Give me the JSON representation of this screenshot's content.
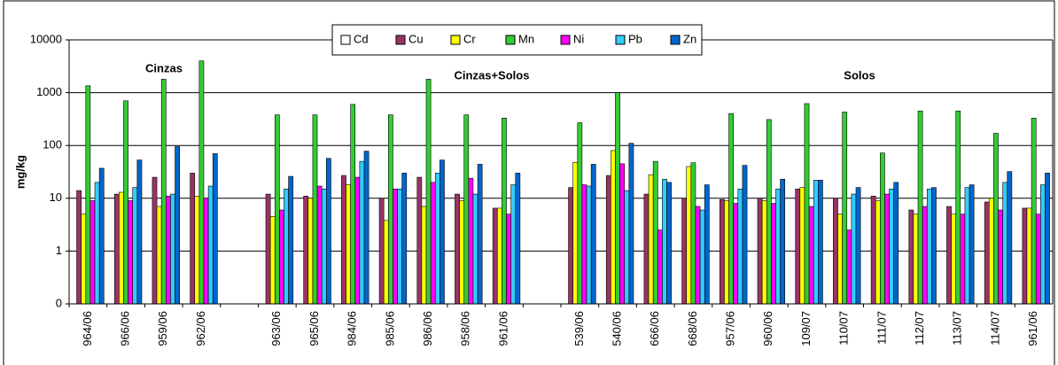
{
  "chart_data": {
    "type": "bar",
    "y_label": "mg/kg",
    "annotations": [
      "Cinzas",
      "Cinzas+Solos",
      "Solos"
    ],
    "categories": [
      "964/06",
      "966/06",
      "959/06",
      "962/06",
      null,
      "963/06",
      "965/06",
      "984/06",
      "985/06",
      "986/06",
      "958/06",
      "961/06",
      null,
      "539/06",
      "540/06",
      "666/06",
      "668/06",
      "957/06",
      "960/06",
      "109/07",
      "110/07",
      "111/07",
      "112/07",
      "113/07",
      "114/07",
      "961/06"
    ],
    "series": [
      {
        "name": "Cd",
        "color": "#ffffff",
        "values": [
          null,
          null,
          null,
          null,
          null,
          null,
          null,
          null,
          null,
          null,
          null,
          null,
          null,
          null,
          null,
          null,
          null,
          null,
          null,
          null,
          null,
          null,
          null,
          null,
          null,
          null
        ]
      },
      {
        "name": "Cu",
        "color": "#993366",
        "values": [
          14,
          12,
          25,
          30,
          null,
          12,
          11,
          27,
          10,
          25,
          12,
          6.5,
          null,
          16,
          27,
          12,
          10,
          9.5,
          10,
          15,
          10,
          11,
          6,
          7,
          8.5,
          6.5
        ]
      },
      {
        "name": "Cr",
        "color": "#ffff00",
        "values": [
          5,
          13,
          7,
          11,
          null,
          4.5,
          10,
          18,
          3.8,
          7,
          9,
          6.5,
          null,
          48,
          80,
          28,
          40,
          9,
          9,
          16,
          5,
          9,
          5,
          5,
          10,
          6.5
        ]
      },
      {
        "name": "Mn",
        "color": "#33cc33",
        "values": [
          1350,
          700,
          1800,
          4000,
          null,
          380,
          380,
          600,
          380,
          1800,
          380,
          330,
          null,
          270,
          1000,
          50,
          47,
          400,
          310,
          620,
          430,
          72,
          450,
          450,
          170,
          330
        ]
      },
      {
        "name": "Ni",
        "color": "#ff00ff",
        "values": [
          9,
          9,
          11,
          10,
          null,
          6,
          17,
          25,
          15,
          20,
          24,
          5,
          null,
          18,
          45,
          2.5,
          7,
          8,
          8,
          7,
          2.5,
          12,
          7,
          5,
          6,
          5
        ]
      },
      {
        "name": "Pb",
        "color": "#33ccff",
        "values": [
          20,
          16,
          12,
          17,
          null,
          15,
          15,
          50,
          15,
          30,
          12,
          18,
          null,
          17,
          14,
          23,
          6,
          15,
          15,
          22,
          12,
          15,
          15,
          16,
          20,
          18
        ]
      },
      {
        "name": "Zn",
        "color": "#0066cc",
        "values": [
          37,
          53,
          95,
          70,
          null,
          26,
          57,
          78,
          30,
          53,
          44,
          30,
          null,
          44,
          110,
          20,
          18,
          42,
          23,
          22,
          16,
          20,
          16,
          18,
          32,
          30
        ]
      }
    ],
    "log_scale": true,
    "ylim": [
      0.1,
      10000
    ],
    "yticks": [
      {
        "value": 0.1,
        "label": "0"
      },
      1,
      10,
      100,
      1000,
      10000
    ],
    "grid": true,
    "legend": "top"
  }
}
